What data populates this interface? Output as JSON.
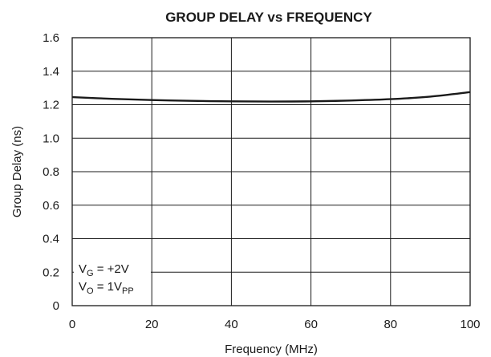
{
  "chart_data": {
    "type": "line",
    "title": "GROUP DELAY vs FREQUENCY",
    "xlabel": "Frequency (MHz)",
    "ylabel": "Group Delay (ns)",
    "xlim": [
      0,
      100
    ],
    "ylim": [
      0,
      1.6
    ],
    "xticks": [
      "0",
      "20",
      "40",
      "60",
      "80",
      "100"
    ],
    "yticks": [
      "0",
      "0.2",
      "0.4",
      "0.6",
      "0.8",
      "1.0",
      "1.2",
      "1.4",
      "1.6"
    ],
    "grid": true,
    "legend": "none",
    "series": [
      {
        "x": [
          0,
          10,
          20,
          30,
          40,
          50,
          60,
          70,
          80,
          90,
          100
        ],
        "y": [
          1.245,
          1.235,
          1.228,
          1.223,
          1.22,
          1.219,
          1.22,
          1.225,
          1.233,
          1.248,
          1.275
        ]
      }
    ],
    "annotations": [
      {
        "main": "V",
        "sub": "G",
        "rest": " = +2V"
      },
      {
        "main": "V",
        "sub": "O",
        "rest": " = 1V",
        "sub2": "PP"
      }
    ]
  }
}
